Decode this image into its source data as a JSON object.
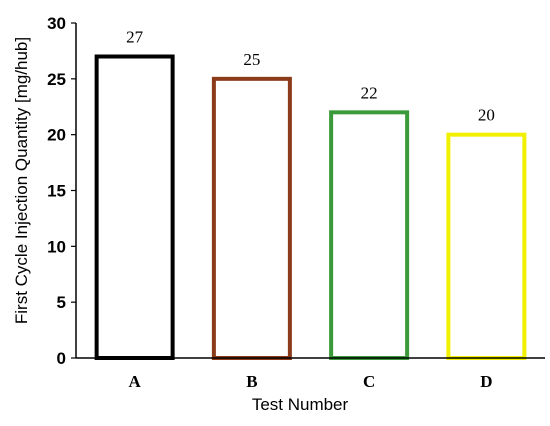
{
  "chart_data": {
    "type": "bar",
    "xlabel": "Test Number",
    "ylabel": "First Cycle Injection Quantity [mg/hub]",
    "categories": [
      "A",
      "B",
      "C",
      "D"
    ],
    "values": [
      27,
      25,
      22,
      20
    ],
    "data_labels": [
      "27",
      "25",
      "22",
      "20"
    ],
    "bar_colors": [
      "#000000",
      "#8b3a1a",
      "#3a9a3a",
      "#f0f000"
    ],
    "bar_fill": "none",
    "ylim": [
      0,
      30
    ],
    "yticks": [
      0,
      5,
      10,
      15,
      20,
      25,
      30
    ],
    "grid": false
  }
}
